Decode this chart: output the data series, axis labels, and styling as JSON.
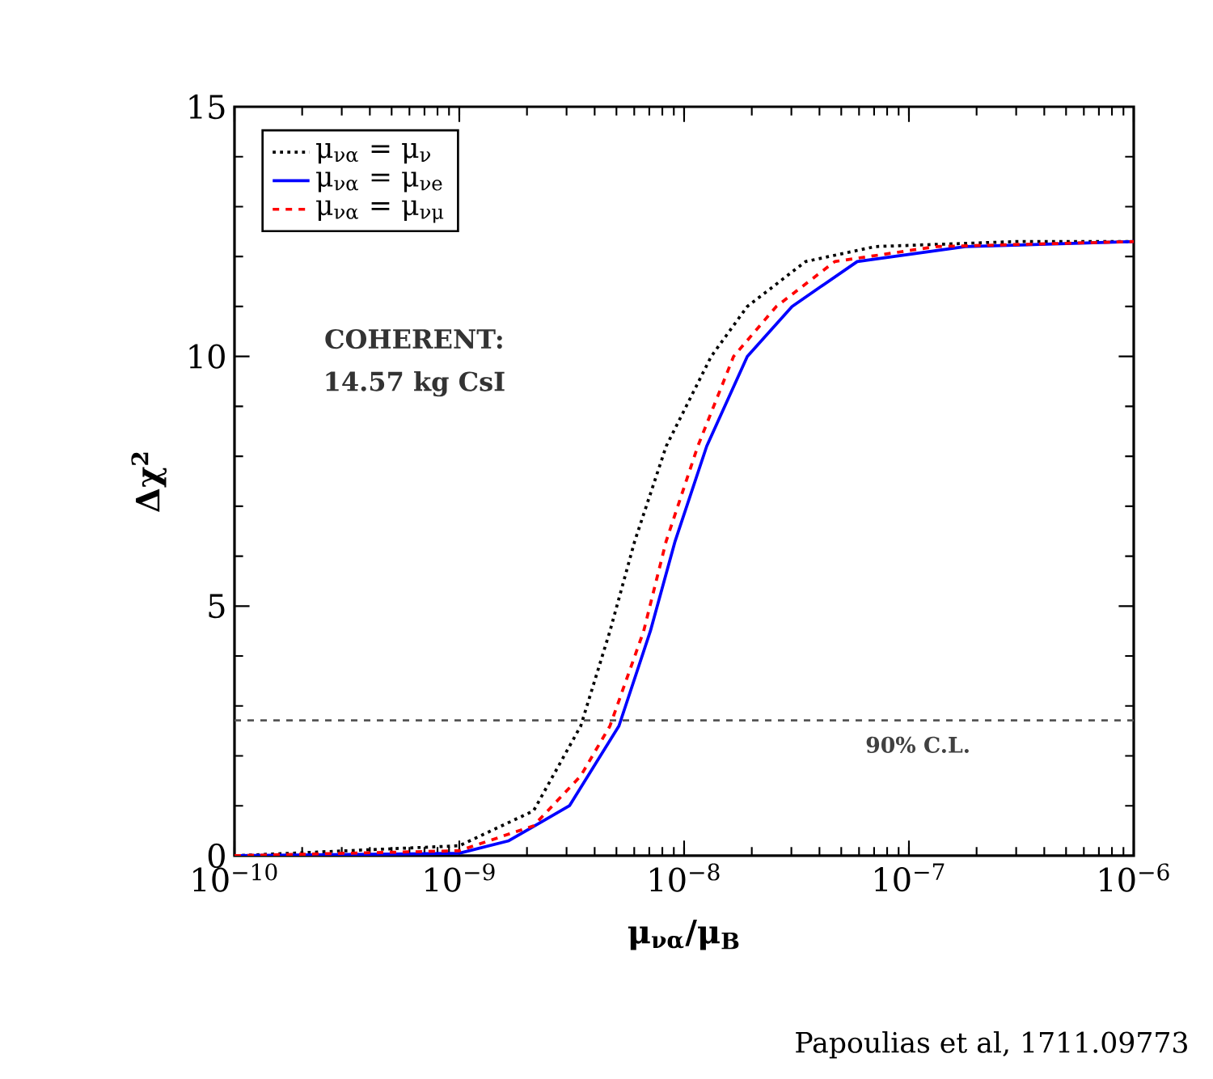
{
  "chart_data": {
    "type": "line",
    "xlabel": "μ$_{να}$/μ$_{B}$",
    "ylabel": "Δχ$^{2}$",
    "log": "x",
    "xlim": [
      1e-10,
      1e-06
    ],
    "ylim": [
      0,
      15
    ],
    "xticks": [
      {
        "value": 1e-10,
        "label": "10$^{−10}$"
      },
      {
        "value": 1e-09,
        "label": "10$^{−9}$"
      },
      {
        "value": 1e-08,
        "label": "10$^{−8}$"
      },
      {
        "value": 1e-07,
        "label": "10$^{−7}$"
      },
      {
        "value": 1e-06,
        "label": "10$^{−6}$"
      }
    ],
    "yticks": [
      0,
      5,
      10,
      15
    ],
    "grid": false,
    "legend": "top left",
    "series": [
      {
        "name": "μ$_{να}$ = μ$_{ν}$",
        "color": "#000000",
        "line_style": "dotted",
        "x": [
          1e-10,
          1e-09,
          2.14e-09,
          3.47e-09,
          4.68e-09,
          6.03e-09,
          8.32e-09,
          1.32e-08,
          1.91e-08,
          3.47e-08,
          7.08e-08,
          3e-07,
          1e-06
        ],
        "values": [
          0,
          0.2,
          0.9,
          2.6,
          4.5,
          6.3,
          8.2,
          10.0,
          11.0,
          11.9,
          12.2,
          12.3,
          12.3
        ]
      },
      {
        "name": "μ$_{να}$ = μ$_{νe}$",
        "color": "#0000ff",
        "line_style": "solid",
        "x": [
          1e-10,
          1e-09,
          1.66e-09,
          3.09e-09,
          5.13e-09,
          7.08e-09,
          9.12e-09,
          1.26e-08,
          1.91e-08,
          3.02e-08,
          5.89e-08,
          1.78e-07,
          1e-06
        ],
        "values": [
          0,
          0.05,
          0.3,
          1.0,
          2.6,
          4.5,
          6.3,
          8.2,
          10.0,
          11.0,
          11.9,
          12.2,
          12.3
        ]
      },
      {
        "name": "μ$_{να}$ = μ$_{νμ}$",
        "color": "#ff0000",
        "line_style": "dashed",
        "x": [
          1e-10,
          1e-09,
          2.14e-09,
          3.47e-09,
          4.68e-09,
          6.61e-09,
          8.32e-09,
          1.15e-08,
          1.66e-08,
          2.57e-08,
          4.68e-08,
          1.32e-07,
          1e-06
        ],
        "values": [
          0,
          0.1,
          0.6,
          1.6,
          2.6,
          4.5,
          6.3,
          8.2,
          10.0,
          11.0,
          11.9,
          12.2,
          12.3
        ]
      }
    ],
    "ref_lines": [
      {
        "axis": "y",
        "value": 2.71,
        "label": "90% C.L.",
        "color": "#555555",
        "line_style": "dashed"
      }
    ],
    "annotations": [
      "COHERENT:",
      "14.57 kg CsI",
      "Papoulias et al, 1711.09773"
    ]
  }
}
